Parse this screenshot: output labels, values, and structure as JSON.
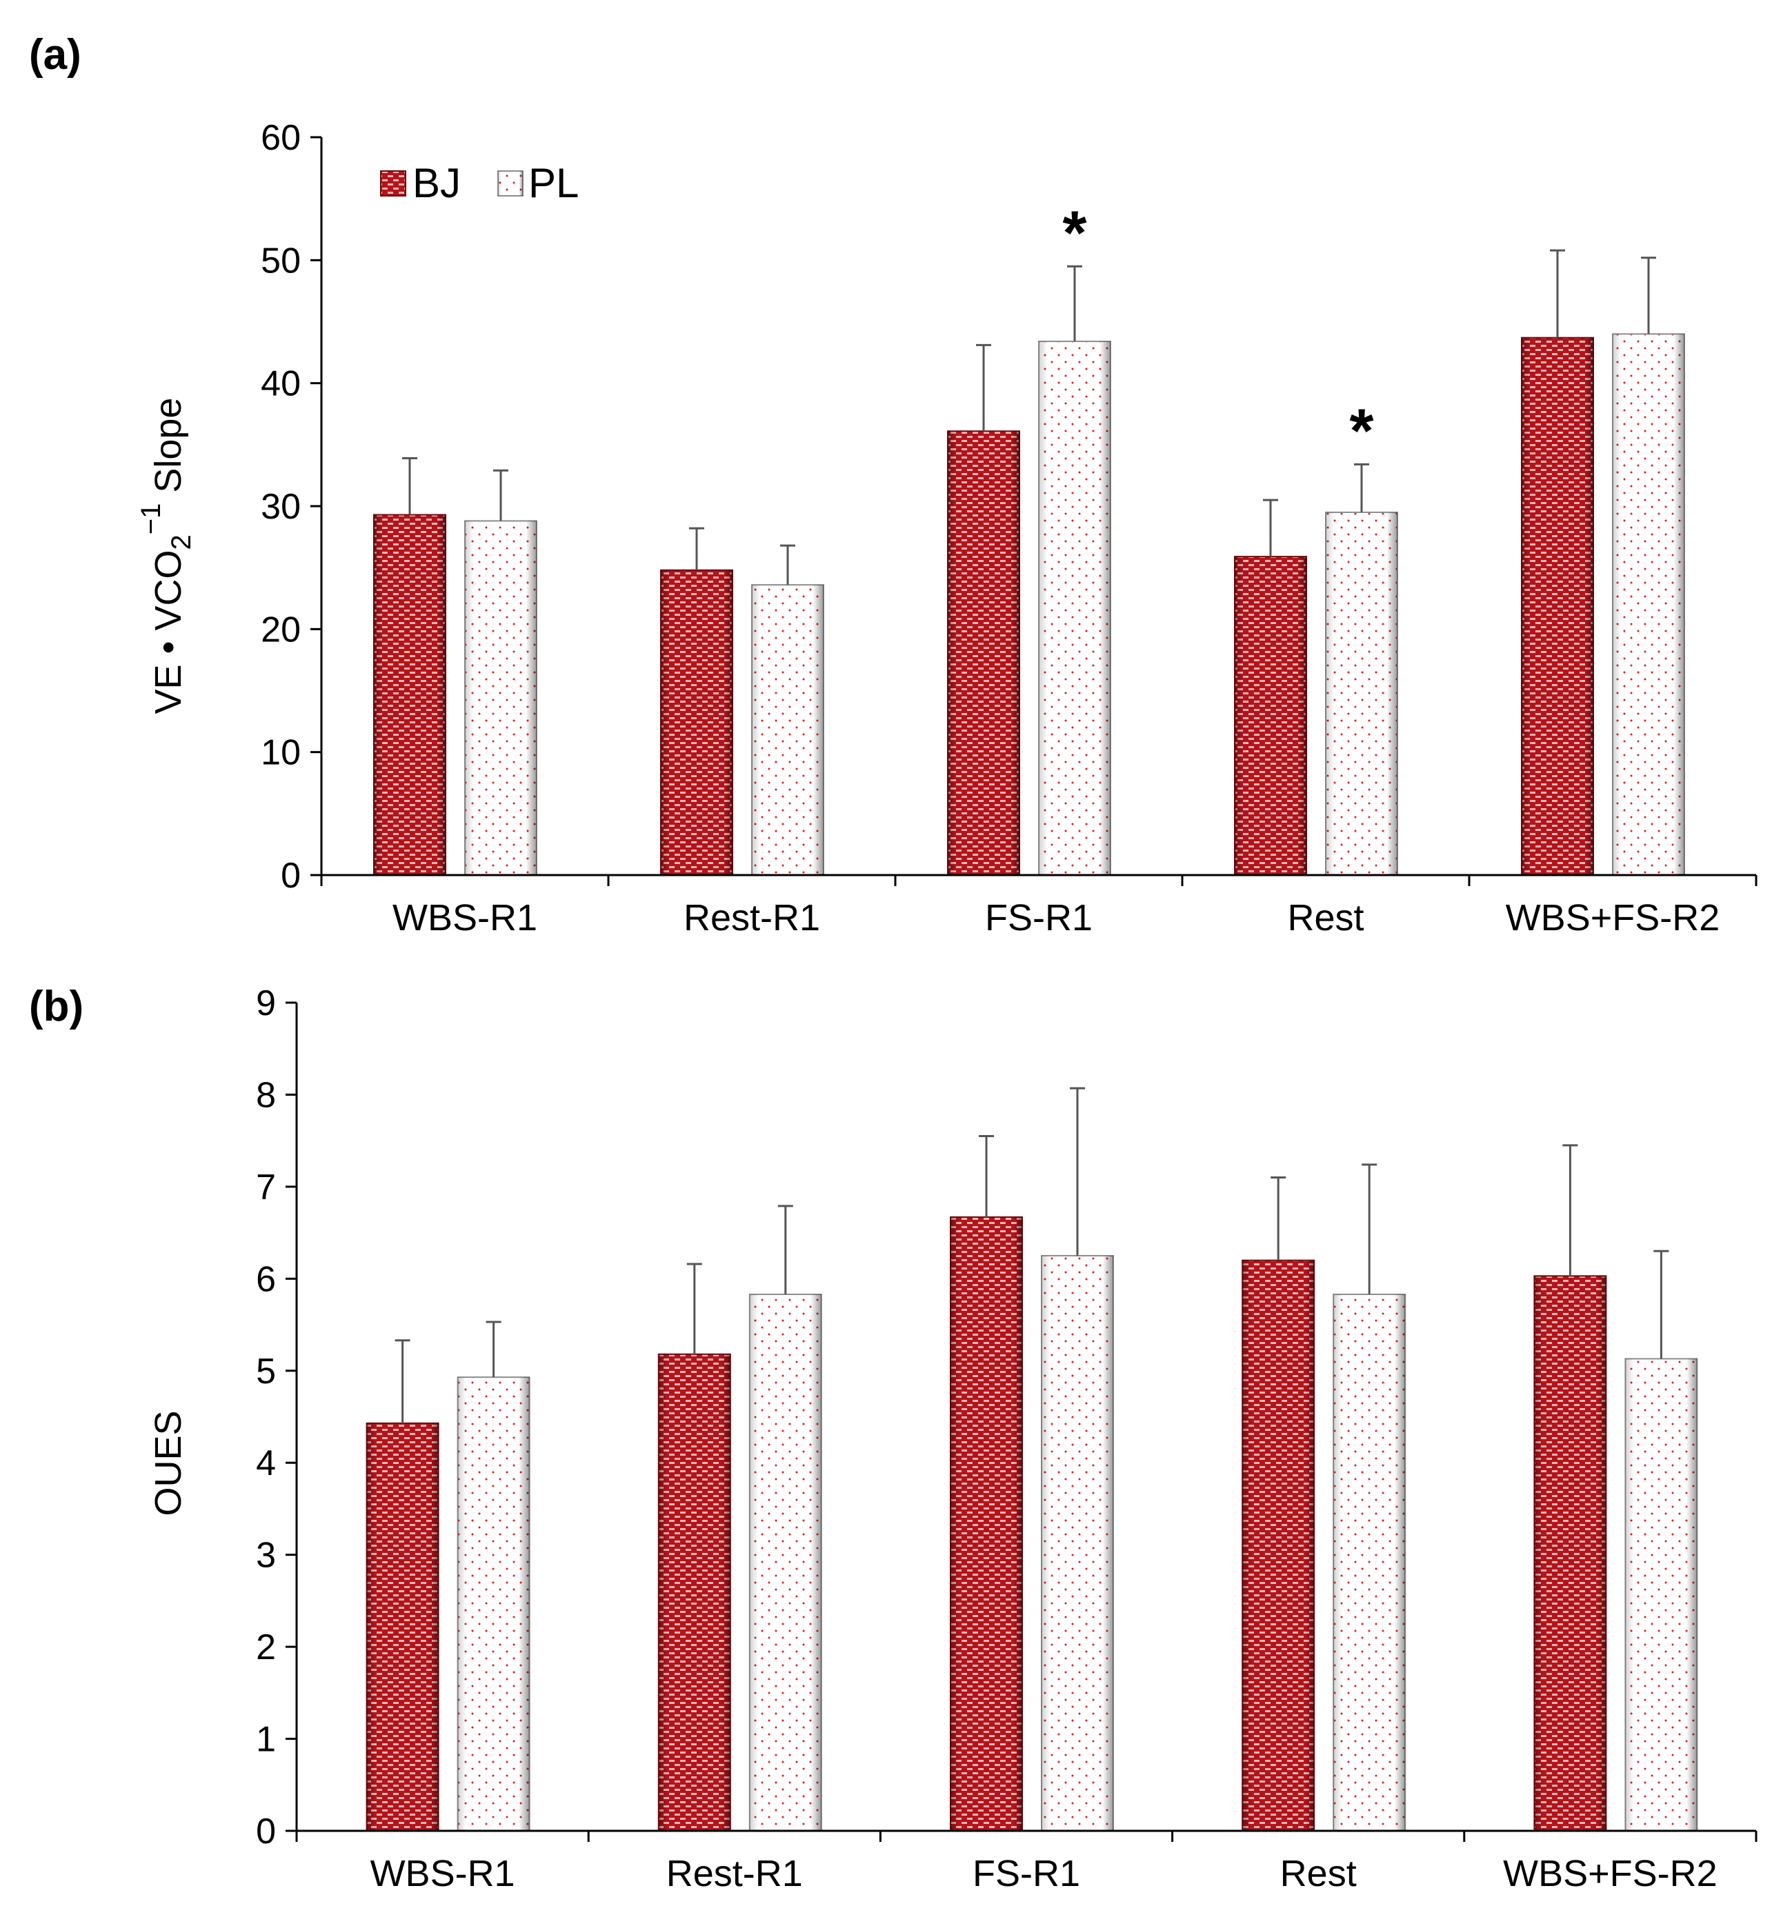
{
  "chart_data": [
    {
      "type": "bar",
      "panel_label": "(a)",
      "title": "",
      "xlabel": "",
      "ylabel": "VE • VCO",
      "ylabel_sub": "2",
      "ylabel_sup": "−1",
      "ylabel_tail": " Slope",
      "ylim": [
        0,
        60
      ],
      "yticks": [
        0,
        10,
        20,
        30,
        40,
        50,
        60
      ],
      "categories": [
        "WBS-R1",
        "Rest-R1",
        "FS-R1",
        "Rest",
        "WBS+FS-R2"
      ],
      "series": [
        {
          "name": "BJ",
          "values": [
            29.3,
            24.8,
            36.1,
            25.9,
            43.7
          ],
          "errors": [
            4.6,
            3.4,
            7.0,
            4.6,
            7.1
          ]
        },
        {
          "name": "PL",
          "values": [
            28.8,
            23.6,
            43.4,
            29.5,
            44.0
          ],
          "errors": [
            4.1,
            3.2,
            6.1,
            3.9,
            6.2
          ]
        }
      ],
      "legend": {
        "position": "top-left",
        "entries": [
          "BJ",
          "PL"
        ]
      },
      "annotations": [
        {
          "text": "*",
          "category": "FS-R1",
          "series": "PL"
        },
        {
          "text": "*",
          "category": "Rest",
          "series": "PL"
        }
      ],
      "grid": false
    },
    {
      "type": "bar",
      "panel_label": "(b)",
      "title": "",
      "xlabel": "",
      "ylabel": "OUES",
      "ylim": [
        0,
        9
      ],
      "yticks": [
        0,
        1,
        2,
        3,
        4,
        5,
        6,
        7,
        8,
        9
      ],
      "categories": [
        "WBS-R1",
        "Rest-R1",
        "FS-R1",
        "Rest",
        "WBS+FS-R2"
      ],
      "series": [
        {
          "name": "BJ",
          "values": [
            4.43,
            5.18,
            6.67,
            6.2,
            6.03
          ],
          "errors": [
            0.9,
            0.98,
            0.88,
            0.9,
            1.42
          ]
        },
        {
          "name": "PL",
          "values": [
            4.93,
            5.83,
            6.25,
            5.83,
            5.13
          ],
          "errors": [
            0.6,
            0.96,
            1.82,
            1.41,
            1.17
          ]
        }
      ],
      "grid": false
    }
  ],
  "colors": {
    "bj_fill": "#b3141a",
    "bj_dark": "#6e0a0e",
    "bj_brick": "#f1b7b7",
    "pl_fill": "#ffffff",
    "pl_dot": "#e31b1b",
    "pl_edge": "#8c8c8c"
  }
}
